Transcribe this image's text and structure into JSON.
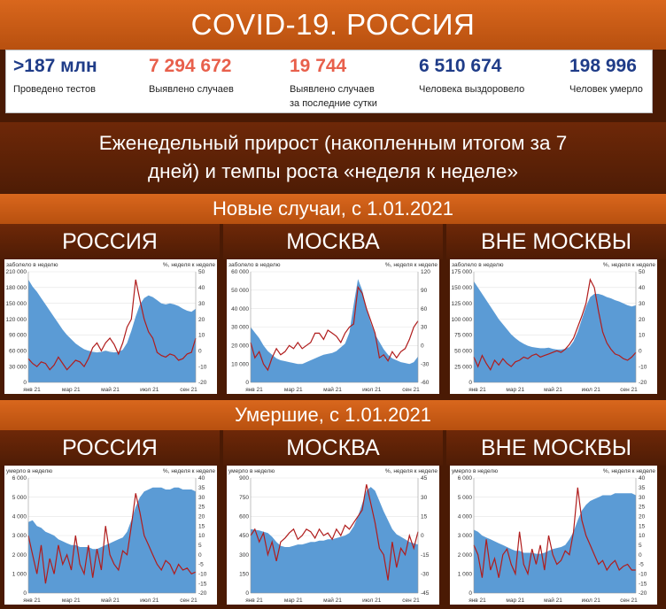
{
  "header": {
    "title": "COVID-19. РОССИЯ"
  },
  "stats": [
    {
      "value": ">187 млн",
      "label": "Проведено тестов",
      "color": "#1f3c88"
    },
    {
      "value": "7 294 672",
      "label": "Выявлено случаев",
      "color": "#e8604c"
    },
    {
      "value": "19 744",
      "label": "Выявлено случаев",
      "label2": "за последние сутки",
      "color": "#e8604c"
    },
    {
      "value": "6 510 674",
      "label": "Человека выздоровело",
      "color": "#1f3c88"
    },
    {
      "value": "198 996",
      "label": "Человек умерло",
      "color": "#1f3c88"
    }
  ],
  "subtitle": {
    "line1": "Еженедельный прирост (накопленным итогом за 7",
    "line2": "дней) и темпы роста «неделя к неделе»"
  },
  "section_cases": {
    "title": "Новые случаи, с 1.01.2021"
  },
  "section_deaths": {
    "title": "Умершие, с 1.01.2021"
  },
  "regions": {
    "russia": "РОССИЯ",
    "moscow": "МОСКВА",
    "outside": "ВНЕ МОСКВЫ"
  },
  "colors": {
    "area": "#5b9bd5",
    "line": "#b01c1c",
    "grid": "#e3e3e3"
  },
  "chart_data": [
    {
      "id": "cases-russia",
      "type": "area",
      "left_label": "заболело в неделю",
      "right_label": "%, неделя к неделе",
      "left_ticks": [
        "0",
        "30 000",
        "60 000",
        "90 000",
        "120 000",
        "150 000",
        "180 000",
        "210 000"
      ],
      "right_ticks": [
        "-20",
        "-10",
        "0",
        "10",
        "20",
        "30",
        "40",
        "50"
      ],
      "x_ticks": [
        "янв 21",
        "мар 21",
        "май 21",
        "июл 21",
        "сен 21"
      ],
      "ylim": [
        0,
        210000
      ],
      "y2lim": [
        -20,
        50
      ],
      "area": [
        195000,
        182000,
        172000,
        160000,
        148000,
        136000,
        124000,
        112000,
        100000,
        90000,
        82000,
        74000,
        68000,
        63000,
        60000,
        58000,
        57000,
        58000,
        60000,
        58000,
        57000,
        58000,
        62000,
        75000,
        98000,
        125000,
        148000,
        160000,
        165000,
        162000,
        156000,
        150000,
        148000,
        150000,
        148000,
        145000,
        140000,
        136000,
        134000,
        140000
      ],
      "line": [
        -5,
        -8,
        -10,
        -7,
        -8,
        -12,
        -9,
        -4,
        -8,
        -12,
        -9,
        -6,
        -7,
        -10,
        -5,
        2,
        5,
        0,
        5,
        8,
        4,
        -2,
        5,
        15,
        20,
        45,
        32,
        20,
        12,
        8,
        -1,
        -3,
        -4,
        -2,
        -3,
        -6,
        -5,
        -2,
        -1,
        8
      ]
    },
    {
      "id": "cases-moscow",
      "type": "area",
      "left_label": "заболело в неделю",
      "right_label": "%, неделя к неделе",
      "left_ticks": [
        "0",
        "10 000",
        "20 000",
        "30 000",
        "40 000",
        "50 000",
        "60 000"
      ],
      "right_ticks": [
        "-60",
        "-30",
        "0",
        "30",
        "60",
        "90",
        "120"
      ],
      "x_ticks": [
        "янв 21",
        "мар 21",
        "май 21",
        "июл 21",
        "сен 21"
      ],
      "ylim": [
        0,
        60000
      ],
      "y2lim": [
        -60,
        120
      ],
      "area": [
        30000,
        27000,
        24000,
        20000,
        17000,
        15000,
        13000,
        12000,
        11500,
        11000,
        10500,
        10000,
        10000,
        11000,
        12000,
        13000,
        14000,
        15000,
        15500,
        16000,
        17000,
        19000,
        21000,
        27000,
        42000,
        56000,
        50000,
        40000,
        32000,
        26000,
        22000,
        18000,
        15000,
        13000,
        12000,
        11000,
        10500,
        10000,
        11000,
        14000
      ],
      "line": [
        5,
        -20,
        -10,
        -30,
        -40,
        -20,
        -5,
        -15,
        -10,
        0,
        -5,
        5,
        -5,
        0,
        5,
        20,
        20,
        10,
        25,
        20,
        15,
        5,
        20,
        30,
        35,
        95,
        85,
        60,
        40,
        20,
        -20,
        -15,
        -25,
        -10,
        -20,
        -10,
        -5,
        10,
        30,
        40
      ]
    },
    {
      "id": "cases-outside",
      "type": "area",
      "left_label": "заболело в неделю",
      "right_label": "%, неделя к неделе",
      "left_ticks": [
        "0",
        "25 000",
        "50 000",
        "75 000",
        "100 000",
        "125 000",
        "150 000",
        "175 000"
      ],
      "right_ticks": [
        "-20",
        "-10",
        "0",
        "10",
        "20",
        "30",
        "40",
        "50"
      ],
      "x_ticks": [
        "янв 21",
        "мар 21",
        "май 21",
        "июл 21",
        "сен 21"
      ],
      "ylim": [
        0,
        175000
      ],
      "y2lim": [
        -20,
        50
      ],
      "area": [
        160000,
        150000,
        140000,
        130000,
        120000,
        110000,
        100000,
        92000,
        84000,
        76000,
        70000,
        65000,
        61000,
        58000,
        56000,
        55000,
        54000,
        54000,
        55000,
        53000,
        52000,
        52000,
        53000,
        56000,
        65000,
        80000,
        100000,
        120000,
        135000,
        140000,
        140000,
        138000,
        135000,
        133000,
        130000,
        128000,
        125000,
        122000,
        120000,
        122000
      ],
      "line": [
        -4,
        -10,
        -3,
        -8,
        -12,
        -6,
        -9,
        -5,
        -8,
        -10,
        -7,
        -6,
        -4,
        -5,
        -3,
        -2,
        -4,
        -3,
        -2,
        -1,
        0,
        -1,
        1,
        4,
        8,
        15,
        22,
        30,
        45,
        40,
        25,
        12,
        5,
        1,
        -2,
        -3,
        -5,
        -6,
        -4,
        -1
      ]
    },
    {
      "id": "deaths-russia",
      "type": "area",
      "left_label": "умерло в неделю",
      "right_label": "%, неделя к неделе",
      "left_ticks": [
        "0",
        "1 000",
        "2 000",
        "3 000",
        "4 000",
        "5 000",
        "6 000"
      ],
      "right_ticks": [
        "-20",
        "-15",
        "-10",
        "-5",
        "0",
        "5",
        "10",
        "15",
        "20",
        "25",
        "30",
        "35",
        "40"
      ],
      "x_ticks": [
        "янв 21",
        "мар 21",
        "май 21",
        "июл 21",
        "сен 21"
      ],
      "ylim": [
        0,
        6000
      ],
      "y2lim": [
        -20,
        40
      ],
      "area": [
        3700,
        3800,
        3500,
        3400,
        3200,
        3100,
        3000,
        2800,
        2700,
        2600,
        2500,
        2500,
        2400,
        2400,
        2400,
        2300,
        2300,
        2400,
        2500,
        2600,
        2700,
        2800,
        2900,
        3200,
        3800,
        4500,
        5000,
        5300,
        5400,
        5500,
        5500,
        5500,
        5400,
        5400,
        5500,
        5500,
        5400,
        5400,
        5400,
        5300
      ],
      "line": [
        10,
        0,
        -10,
        5,
        -15,
        -2,
        -10,
        5,
        -5,
        0,
        -8,
        10,
        -5,
        -10,
        5,
        -12,
        3,
        -8,
        15,
        0,
        -5,
        -8,
        2,
        0,
        15,
        32,
        22,
        10,
        5,
        0,
        -5,
        -8,
        -3,
        -5,
        -10,
        -5,
        -8,
        -7,
        -10,
        -9
      ]
    },
    {
      "id": "deaths-moscow",
      "type": "area",
      "left_label": "умерло в неделю",
      "right_label": "%, неделя к неделе",
      "left_ticks": [
        "0",
        "150",
        "300",
        "450",
        "600",
        "750",
        "900"
      ],
      "right_ticks": [
        "-45",
        "-30",
        "-15",
        "0",
        "15",
        "30",
        "45"
      ],
      "x_ticks": [
        "янв 21",
        "мар 21",
        "май 21",
        "июл 21",
        "сен 21"
      ],
      "ylim": [
        0,
        900
      ],
      "y2lim": [
        -45,
        45
      ],
      "area": [
        500,
        495,
        490,
        480,
        470,
        440,
        400,
        370,
        360,
        360,
        370,
        380,
        380,
        390,
        400,
        400,
        410,
        410,
        420,
        420,
        430,
        440,
        450,
        470,
        520,
        600,
        700,
        800,
        830,
        800,
        720,
        640,
        570,
        500,
        460,
        440,
        420,
        400,
        390,
        380
      ],
      "line": [
        0,
        5,
        -5,
        2,
        -15,
        -5,
        -20,
        -5,
        -2,
        2,
        5,
        -3,
        0,
        5,
        3,
        -2,
        5,
        0,
        2,
        -3,
        5,
        0,
        8,
        5,
        10,
        15,
        20,
        40,
        25,
        10,
        -10,
        -15,
        -35,
        -5,
        -25,
        -10,
        -15,
        0,
        -10,
        3
      ]
    },
    {
      "id": "deaths-outside",
      "type": "area",
      "left_label": "умерло в неделю",
      "right_label": "%, неделя к неделе",
      "left_ticks": [
        "0",
        "1 000",
        "2 000",
        "3 000",
        "4 000",
        "5 000",
        "6 000"
      ],
      "right_ticks": [
        "-20",
        "-15",
        "-10",
        "-5",
        "0",
        "5",
        "10",
        "15",
        "20",
        "25",
        "30",
        "35",
        "40"
      ],
      "x_ticks": [
        "янв 21",
        "мар 21",
        "май 21",
        "июл 21",
        "сен 21"
      ],
      "ylim": [
        0,
        6000
      ],
      "y2lim": [
        -20,
        40
      ],
      "area": [
        3300,
        3200,
        3000,
        2900,
        2800,
        2700,
        2600,
        2500,
        2400,
        2300,
        2200,
        2200,
        2100,
        2100,
        2100,
        2050,
        2050,
        2100,
        2200,
        2300,
        2350,
        2400,
        2500,
        2800,
        3200,
        3800,
        4300,
        4600,
        4800,
        4900,
        5000,
        5100,
        5100,
        5100,
        5200,
        5200,
        5200,
        5200,
        5200,
        5100
      ],
      "line": [
        5,
        0,
        -12,
        8,
        -8,
        -2,
        -12,
        0,
        3,
        -5,
        -10,
        12,
        -5,
        -10,
        3,
        -5,
        5,
        -8,
        10,
        0,
        -5,
        -3,
        2,
        0,
        12,
        35,
        18,
        10,
        5,
        0,
        -5,
        -3,
        -8,
        -5,
        -3,
        -8,
        -6,
        -5,
        -8,
        -8
      ]
    }
  ]
}
